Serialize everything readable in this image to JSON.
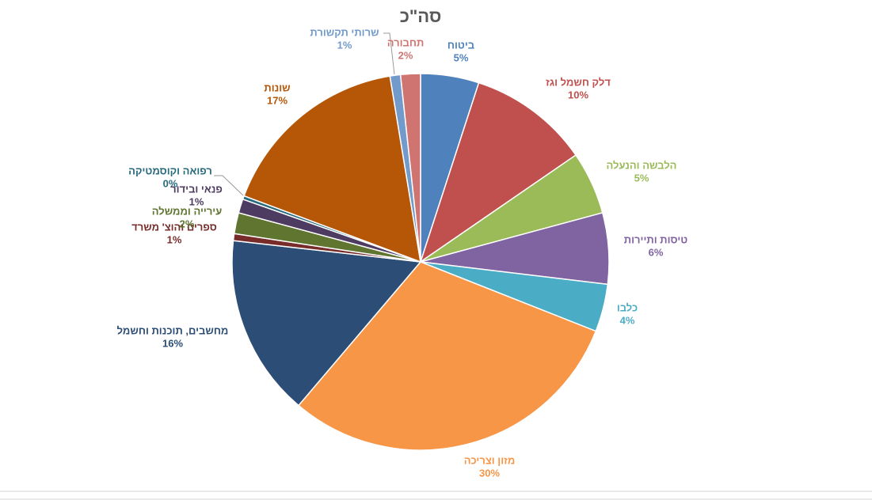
{
  "chart_data": {
    "type": "pie",
    "title": "סה\"כ",
    "categories": [
      "ביטוח",
      "דלק חשמל וגז",
      "הלבשה והנעלה",
      "טיסות ותיירות",
      "כלבו",
      "מזון וצריכה",
      "מחשבים, תוכנות וחשמל",
      "ספרים והוצ' משרד",
      "עירייה וממשלה",
      "פנאי ובידור",
      "רפואה וקוסמטיקה",
      "שונות",
      "שרותי תקשורת",
      "תחבורה"
    ],
    "values": [
      5,
      10.4,
      5.4,
      6.1,
      4.1,
      30.2,
      15.6,
      0.6,
      1.8,
      1.2,
      0.3,
      16.7,
      0.9,
      1.7
    ],
    "value_labels": [
      "5%",
      "10%",
      "5%",
      "6%",
      "4%",
      "30%",
      "16%",
      "1%",
      "2%",
      "1%",
      "0%",
      "17%",
      "1%",
      "2%"
    ],
    "colors": [
      "#4f81bd",
      "#c0504d",
      "#9bbb59",
      "#8064a2",
      "#4bacc6",
      "#f79646",
      "#2c4d75",
      "#772c2a",
      "#5f7530",
      "#4d3b62",
      "#276a7c",
      "#b65708",
      "#729aca",
      "#d07471"
    ]
  }
}
